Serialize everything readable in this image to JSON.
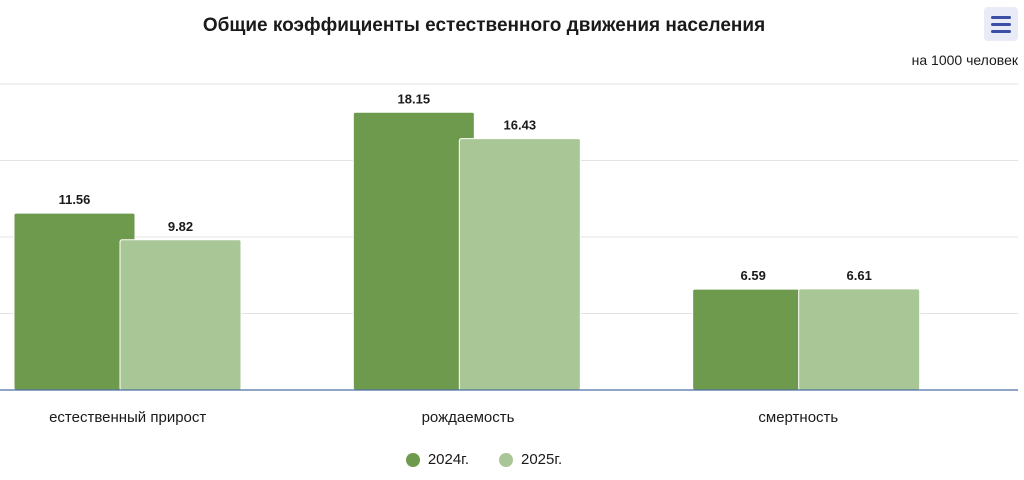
{
  "chart_data": {
    "type": "bar",
    "title": "Общие коэффициенты естественного движения населения",
    "subtitle": "на 1000 человек",
    "categories": [
      "естественный прирост",
      "рождаемость",
      "смертность"
    ],
    "series": [
      {
        "name": "2024г.",
        "color": "#6e9a4d",
        "values": [
          11.56,
          18.15,
          6.59
        ]
      },
      {
        "name": "2025г.",
        "color": "#a8c696",
        "values": [
          9.82,
          16.43,
          6.61
        ]
      }
    ],
    "ylim": [
      0,
      20
    ],
    "grid": true,
    "legend": "bottom"
  },
  "menu": {
    "icon": "hamburger-menu-icon"
  }
}
